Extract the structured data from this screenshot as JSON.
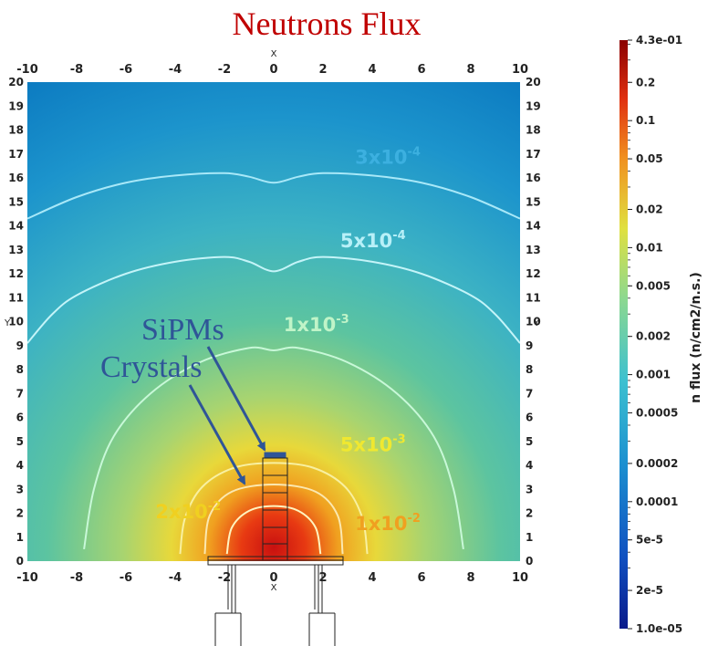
{
  "title": "Neutrons Flux",
  "chart_data": {
    "type": "heatmap",
    "title": "Neutrons Flux",
    "xlabel": "X",
    "ylabel": "Y",
    "xlim": [
      -10,
      10
    ],
    "ylim": [
      0,
      20
    ],
    "x_ticks": [
      -10,
      -8,
      -6,
      -4,
      -2,
      0,
      2,
      4,
      6,
      8,
      10
    ],
    "y_ticks": [
      0,
      1,
      2,
      3,
      4,
      5,
      6,
      7,
      8,
      9,
      10,
      11,
      12,
      13,
      14,
      15,
      16,
      17,
      18,
      19,
      20
    ],
    "colorbar": {
      "label": "n flux (n/cm2/n.s.)",
      "scale": "log",
      "range": [
        1e-05,
        0.43
      ],
      "ticks": [
        {
          "value": 0.43,
          "label": "4.3e-01"
        },
        {
          "value": 0.2,
          "label": "0.2"
        },
        {
          "value": 0.1,
          "label": "0.1"
        },
        {
          "value": 0.05,
          "label": "0.05"
        },
        {
          "value": 0.02,
          "label": "0.02"
        },
        {
          "value": 0.01,
          "label": "0.01"
        },
        {
          "value": 0.005,
          "label": "0.005"
        },
        {
          "value": 0.002,
          "label": "0.002"
        },
        {
          "value": 0.001,
          "label": "0.001"
        },
        {
          "value": 0.0005,
          "label": "0.0005"
        },
        {
          "value": 0.0002,
          "label": "0.0002"
        },
        {
          "value": 0.0001,
          "label": "0.0001"
        },
        {
          "value": 5e-05,
          "label": "5e-5"
        },
        {
          "value": 2e-05,
          "label": "2e-5"
        },
        {
          "value": 1e-05,
          "label": "1.0e-05"
        }
      ]
    },
    "contours": [
      {
        "value": 0.0003,
        "label_base": "3x10",
        "label_exp": "-4",
        "color": "#a8e8f8",
        "points": [
          [
            -10,
            14.3
          ],
          [
            -8,
            15.2
          ],
          [
            -6,
            15.8
          ],
          [
            -4,
            16.1
          ],
          [
            -2,
            16.2
          ],
          [
            -1,
            16.05
          ],
          [
            0,
            15.8
          ],
          [
            1,
            16.05
          ],
          [
            2,
            16.2
          ],
          [
            4,
            16.1
          ],
          [
            6,
            15.8
          ],
          [
            8,
            15.2
          ],
          [
            10,
            14.3
          ]
        ]
      },
      {
        "value": 0.0005,
        "label_base": "5x10",
        "label_exp": "-4",
        "color": "#c4f4f8",
        "points": [
          [
            -10,
            9.1
          ],
          [
            -9,
            10.3
          ],
          [
            -8,
            11.1
          ],
          [
            -6,
            12.0
          ],
          [
            -4,
            12.5
          ],
          [
            -2,
            12.7
          ],
          [
            -1,
            12.5
          ],
          [
            0,
            12.1
          ],
          [
            1,
            12.5
          ],
          [
            2,
            12.7
          ],
          [
            4,
            12.5
          ],
          [
            6,
            12.0
          ],
          [
            8,
            11.1
          ],
          [
            9,
            10.3
          ],
          [
            10,
            9.1
          ]
        ]
      },
      {
        "value": 0.001,
        "label_base": "1x10",
        "label_exp": "-3",
        "color": "#c8f8d8",
        "points": [
          [
            -7.7,
            0.5
          ],
          [
            -7.3,
            3.0
          ],
          [
            -6.5,
            5.2
          ],
          [
            -5,
            7.0
          ],
          [
            -3,
            8.3
          ],
          [
            -1,
            8.9
          ],
          [
            0,
            8.8
          ],
          [
            1,
            8.9
          ],
          [
            3,
            8.3
          ],
          [
            5,
            7.0
          ],
          [
            6.5,
            5.2
          ],
          [
            7.3,
            3.0
          ],
          [
            7.7,
            0.5
          ]
        ]
      },
      {
        "value": 0.005,
        "label_base": "5x10",
        "label_exp": "-3",
        "color": "#f8f0a0",
        "points": [
          [
            -3.8,
            0.3
          ],
          [
            -3.6,
            1.8
          ],
          [
            -2.9,
            3.1
          ],
          [
            -1.6,
            3.9
          ],
          [
            0,
            4.1
          ],
          [
            1.6,
            3.9
          ],
          [
            2.9,
            3.1
          ],
          [
            3.6,
            1.8
          ],
          [
            3.8,
            0.3
          ]
        ]
      },
      {
        "value": 0.02,
        "label_base": "2x10",
        "label_exp": "-2",
        "color": "#fff4c0",
        "points": [
          [
            -1.9,
            0.3
          ],
          [
            -1.7,
            1.4
          ],
          [
            -1.0,
            2.1
          ],
          [
            0,
            2.3
          ],
          [
            1.0,
            2.1
          ],
          [
            1.7,
            1.4
          ],
          [
            1.9,
            0.3
          ]
        ]
      },
      {
        "value": 0.01,
        "label_base": "1x10",
        "label_exp": "-2",
        "color": "#fbe8b0",
        "points": [
          [
            -2.8,
            0.3
          ],
          [
            -2.6,
            1.9
          ],
          [
            -1.7,
            2.9
          ],
          [
            0,
            3.2
          ],
          [
            1.7,
            2.9
          ],
          [
            2.6,
            1.9
          ],
          [
            2.8,
            0.3
          ]
        ]
      }
    ]
  },
  "annotations": {
    "sipms": "SiPMs",
    "crystals": "Crystals"
  },
  "colors": {
    "title": "#c00000",
    "annotation_text": "#2f5597",
    "arrow": "#2f5597",
    "geometry": "#222222"
  }
}
